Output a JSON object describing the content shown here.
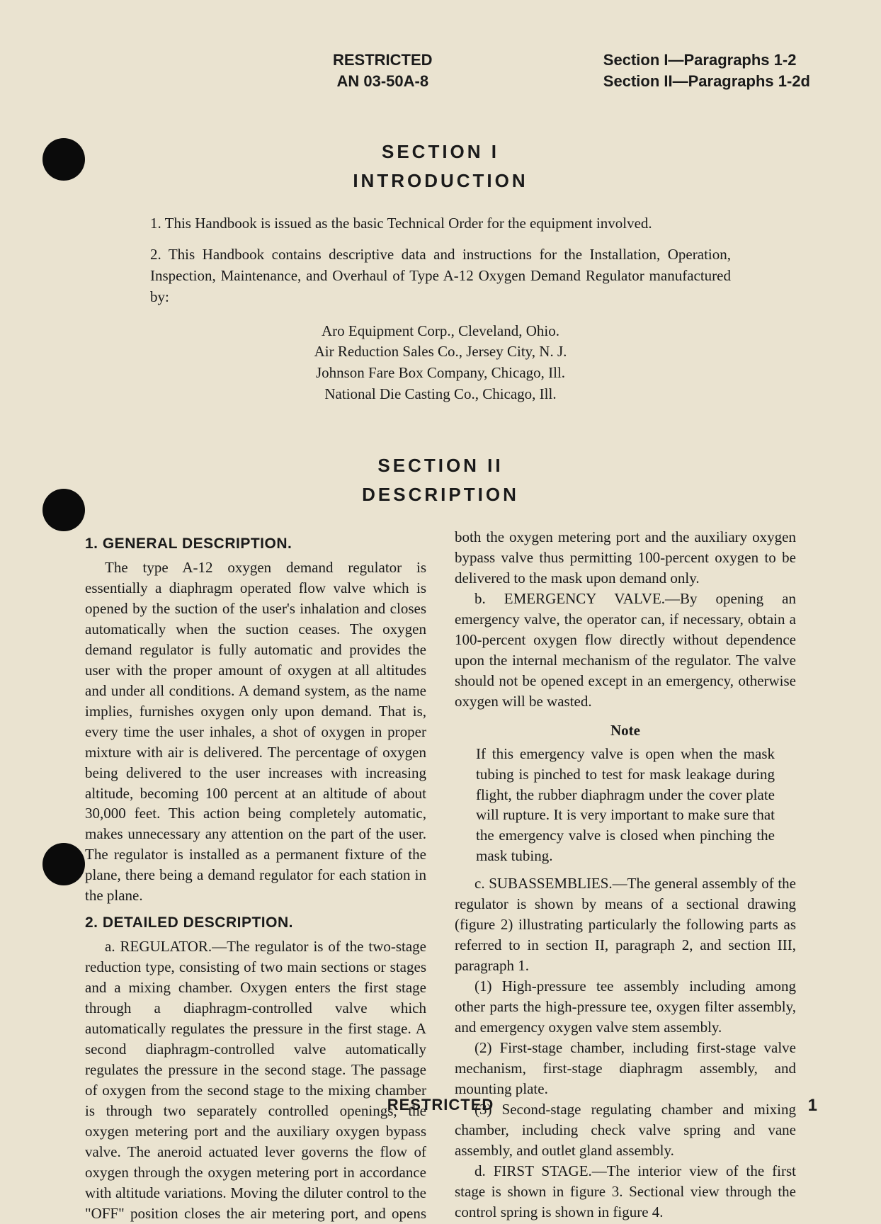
{
  "header": {
    "restricted": "RESTRICTED",
    "an": "AN 03-50A-8",
    "right_line1": "Section I—Paragraphs 1-2",
    "right_line2": "Section II—Paragraphs 1-2d"
  },
  "section1": {
    "num": "SECTION I",
    "name": "INTRODUCTION",
    "p1": "1. This Handbook is issued as the basic Technical Order for the equipment involved.",
    "p2": "2. This Handbook contains descriptive data and instructions for the Installation, Operation, Inspection, Maintenance, and Overhaul of Type A-12 Oxygen Demand Regulator manufactured by:",
    "mfg": [
      "Aro Equipment Corp., Cleveland, Ohio.",
      "Air Reduction Sales Co., Jersey City, N. J.",
      "Johnson Fare Box Company, Chicago, Ill.",
      "National Die Casting Co., Chicago, Ill."
    ]
  },
  "section2": {
    "num": "SECTION II",
    "name": "DESCRIPTION",
    "general_title": "1. GENERAL DESCRIPTION.",
    "general_body": "The type A-12 oxygen demand regulator is essentially a diaphragm operated flow valve which is opened by the suction of the user's inhalation and closes automatically when the suction ceases. The oxygen demand regulator is fully automatic and provides the user with the proper amount of oxygen at all altitudes and under all conditions. A demand system, as the name implies, furnishes oxygen only upon demand. That is, every time the user inhales, a shot of oxygen in proper mixture with air is delivered. The percentage of oxygen being delivered to the user increases with increasing altitude, becoming 100 percent at an altitude of about 30,000 feet. This action being completely automatic, makes unnecessary any attention on the part of the user. The regulator is installed as a permanent fixture of the plane, there being a demand regulator for each station in the plane.",
    "detailed_title": "2. DETAILED DESCRIPTION.",
    "a_body": "a. REGULATOR.—The regulator is of the two-stage reduction type, consisting of two main sections or stages and a mixing chamber. Oxygen enters the first stage through a diaphragm-controlled valve which automatically regulates the pressure in the first stage. A second diaphragm-controlled valve automatically regulates the pressure in the second stage. The passage of oxygen from the second stage to the mixing chamber is through two separately controlled openings, the oxygen metering port and the auxiliary oxygen bypass valve. The aneroid actuated lever governs the flow of oxygen through the oxygen metering port in accordance with altitude variations. Moving the diluter control to the \"OFF\" position closes the air metering port, and opens both the oxygen metering port and the auxiliary oxygen bypass valve thus permitting 100-percent oxygen to be delivered to the mask upon demand only.",
    "b_body": "b. EMERGENCY VALVE.—By opening an emergency valve, the operator can, if necessary, obtain a 100-percent oxygen flow directly without dependence upon the internal mechanism of the regulator. The valve should not be opened except in an emergency, otherwise oxygen will be wasted.",
    "note_title": "Note",
    "note_body": "If this emergency valve is open when the mask tubing is pinched to test for mask leakage during flight, the rubber diaphragm under the cover plate will rupture. It is very important to make sure that the emergency valve is closed when pinching the mask tubing.",
    "c_body": "c. SUBASSEMBLIES.—The general assembly of the regulator is shown by means of a sectional drawing (figure 2) illustrating particularly the following parts as referred to in section II, paragraph 2, and section III, paragraph 1.",
    "c1": "(1) High-pressure tee assembly including among other parts the high-pressure tee, oxygen filter assembly, and emergency oxygen valve stem assembly.",
    "c2": "(2) First-stage chamber, including first-stage valve mechanism, first-stage diaphragm assembly, and mounting plate.",
    "c3": "(3) Second-stage regulating chamber and mixing chamber, including check valve spring and vane assembly, and outlet gland assembly.",
    "d_body": "d. FIRST STAGE.—The interior view of the first stage is shown in figure 3. Sectional view through the control spring is shown in figure 4."
  },
  "footer": {
    "restricted": "RESTRICTED",
    "page_num": "1"
  },
  "colors": {
    "page_bg": "#eae3d0",
    "text": "#1a1a1a",
    "punch": "#0b0b0b"
  }
}
